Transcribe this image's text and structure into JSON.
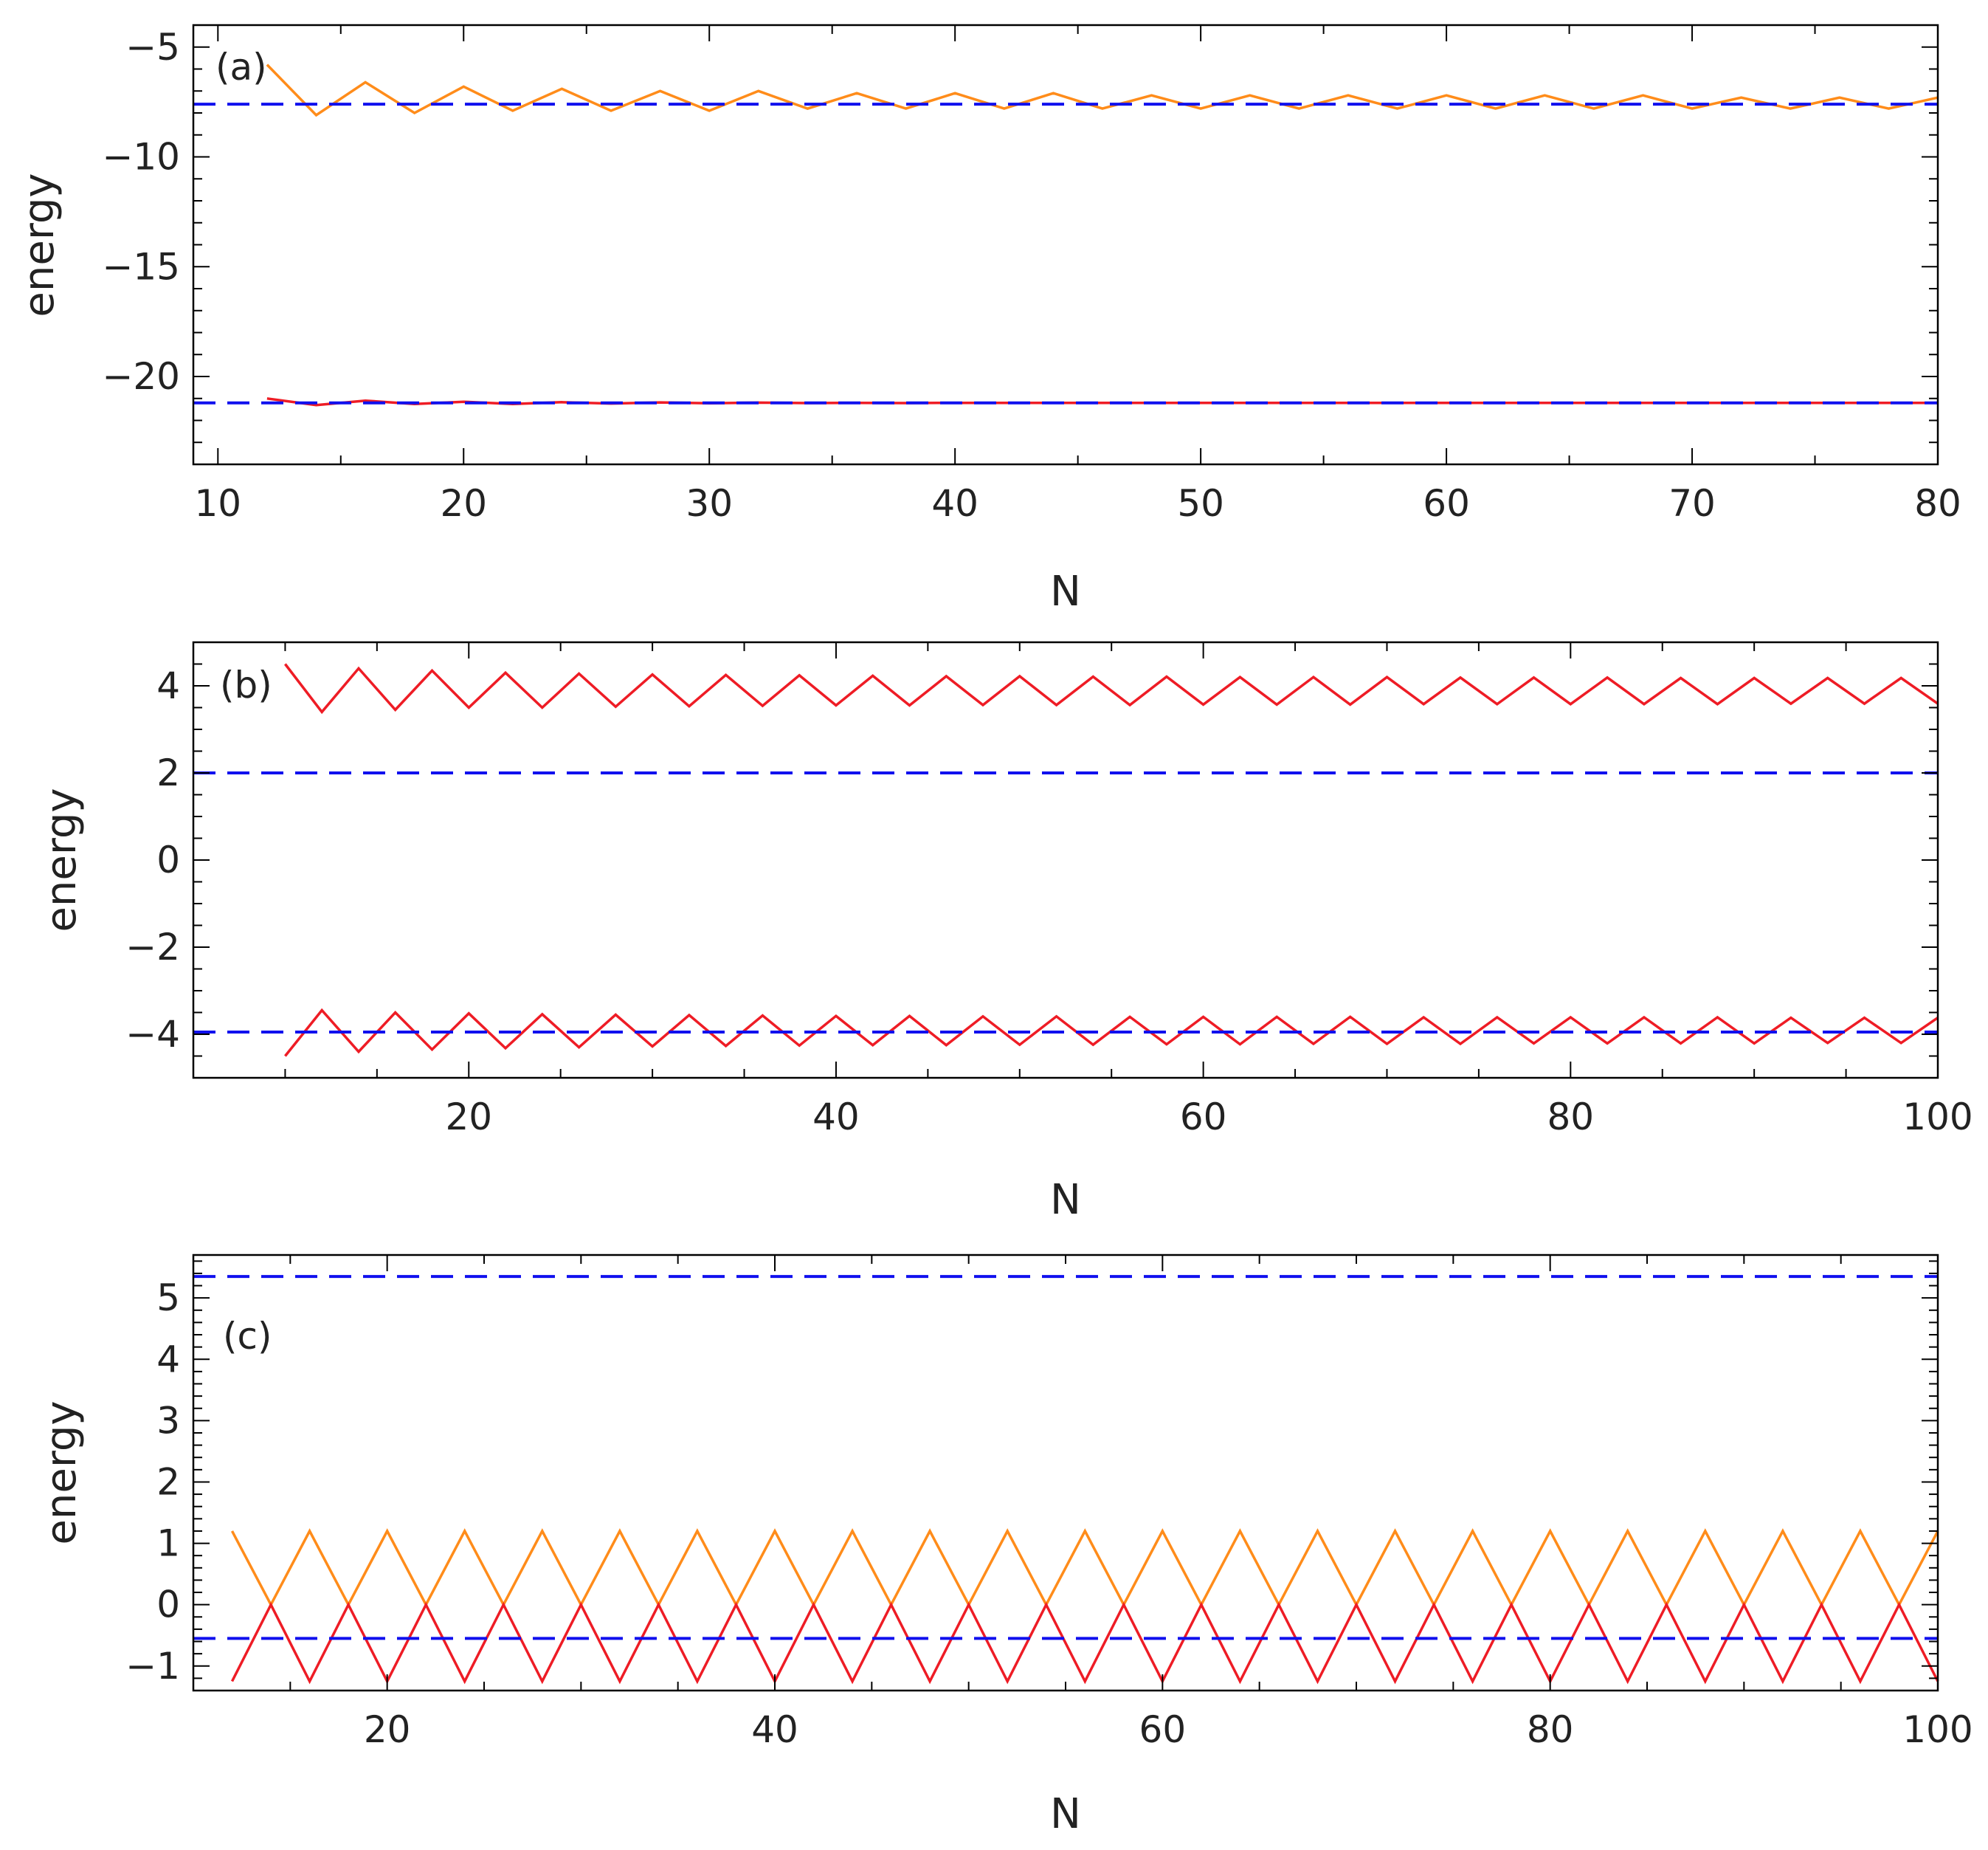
{
  "chart_data": [
    {
      "type": "line",
      "panel_label": "(a)",
      "xlabel": "N",
      "ylabel": "energy",
      "xlim": [
        9,
        80
      ],
      "ylim": [
        -24,
        -4
      ],
      "x_ticks": [
        10,
        20,
        30,
        40,
        50,
        60,
        70,
        80
      ],
      "y_ticks": [
        -20,
        -15,
        -10,
        -5
      ],
      "x_tick_labels": [
        "10",
        "20",
        "30",
        "40",
        "50",
        "60",
        "70",
        "80"
      ],
      "y_tick_labels": [
        "−20",
        "−15",
        "−10",
        "−5"
      ],
      "grid": false,
      "series": [
        {
          "color": "#ff8c1a",
          "style": "solid",
          "x": [
            12,
            14,
            16,
            18,
            20,
            22,
            24,
            26,
            28,
            30,
            32,
            34,
            36,
            38,
            40,
            42,
            44,
            46,
            48,
            50,
            52,
            54,
            56,
            58,
            60,
            62,
            64,
            66,
            68,
            70,
            72,
            74,
            76,
            78,
            80
          ],
          "y": [
            -5.8,
            -8.1,
            -6.6,
            -8.0,
            -6.8,
            -7.9,
            -6.9,
            -7.9,
            -7.0,
            -7.9,
            -7.0,
            -7.8,
            -7.1,
            -7.8,
            -7.1,
            -7.8,
            -7.1,
            -7.8,
            -7.2,
            -7.8,
            -7.2,
            -7.8,
            -7.2,
            -7.8,
            -7.2,
            -7.8,
            -7.2,
            -7.8,
            -7.2,
            -7.8,
            -7.3,
            -7.8,
            -7.3,
            -7.8,
            -7.3
          ]
        },
        {
          "color": "#ee1c25",
          "style": "solid",
          "x": [
            12,
            14,
            16,
            18,
            20,
            22,
            24,
            26,
            28,
            30,
            32,
            34,
            36,
            38,
            40,
            44,
            48,
            52,
            56,
            60,
            64,
            68,
            72,
            76,
            80
          ],
          "y": [
            -21.0,
            -21.3,
            -21.1,
            -21.25,
            -21.15,
            -21.25,
            -21.17,
            -21.23,
            -21.18,
            -21.22,
            -21.19,
            -21.21,
            -21.2,
            -21.21,
            -21.2,
            -21.2,
            -21.2,
            -21.2,
            -21.2,
            -21.2,
            -21.2,
            -21.2,
            -21.2,
            -21.2,
            -21.2
          ]
        },
        {
          "color": "#1010ee",
          "style": "dashed",
          "x": [
            9,
            80
          ],
          "y": [
            -7.6,
            -7.6
          ]
        },
        {
          "color": "#1010ee",
          "style": "dashed",
          "x": [
            9,
            80
          ],
          "y": [
            -21.2,
            -21.2
          ]
        }
      ]
    },
    {
      "type": "line",
      "panel_label": "(b)",
      "xlabel": "N",
      "ylabel": "energy",
      "xlim": [
        5,
        100
      ],
      "ylim": [
        -5,
        5
      ],
      "x_ticks": [
        20,
        40,
        60,
        80,
        100
      ],
      "y_ticks": [
        -4,
        -2,
        0,
        2,
        4
      ],
      "x_tick_labels": [
        "20",
        "40",
        "60",
        "80",
        "100"
      ],
      "y_tick_labels": [
        "−4",
        "−2",
        "0",
        "2",
        "4"
      ],
      "grid": false,
      "series": [
        {
          "color": "#ee1c25",
          "style": "solid",
          "x": [
            10,
            12,
            14,
            16,
            18,
            20,
            22,
            24,
            26,
            28,
            30,
            32,
            34,
            36,
            38,
            40,
            42,
            44,
            46,
            48,
            50,
            52,
            54,
            56,
            58,
            60,
            62,
            64,
            66,
            68,
            70,
            72,
            74,
            76,
            78,
            80,
            82,
            84,
            86,
            88,
            90,
            92,
            94,
            96,
            98,
            100
          ],
          "y": [
            4.5,
            3.4,
            4.4,
            3.45,
            4.35,
            3.5,
            4.3,
            3.5,
            4.28,
            3.52,
            4.26,
            3.53,
            4.25,
            3.54,
            4.24,
            3.55,
            4.23,
            3.55,
            4.22,
            3.56,
            4.22,
            3.56,
            4.21,
            3.56,
            4.21,
            3.57,
            4.2,
            3.57,
            4.2,
            3.57,
            4.2,
            3.58,
            4.19,
            3.58,
            4.19,
            3.58,
            4.19,
            3.58,
            4.18,
            3.58,
            4.18,
            3.59,
            4.18,
            3.59,
            4.18,
            3.59
          ]
        },
        {
          "color": "#ee1c25",
          "style": "solid",
          "x": [
            10,
            12,
            14,
            16,
            18,
            20,
            22,
            24,
            26,
            28,
            30,
            32,
            34,
            36,
            38,
            40,
            42,
            44,
            46,
            48,
            50,
            52,
            54,
            56,
            58,
            60,
            62,
            64,
            66,
            68,
            70,
            72,
            74,
            76,
            78,
            80,
            82,
            84,
            86,
            88,
            90,
            92,
            94,
            96,
            98,
            100
          ],
          "y": [
            -4.5,
            -3.45,
            -4.4,
            -3.5,
            -4.35,
            -3.52,
            -4.32,
            -3.54,
            -4.3,
            -3.55,
            -4.28,
            -3.56,
            -4.27,
            -3.57,
            -4.26,
            -3.58,
            -4.25,
            -3.58,
            -4.25,
            -3.59,
            -4.24,
            -3.59,
            -4.24,
            -3.6,
            -4.23,
            -3.6,
            -4.23,
            -3.6,
            -4.22,
            -3.6,
            -4.22,
            -3.61,
            -4.22,
            -3.61,
            -4.21,
            -3.61,
            -4.21,
            -3.61,
            -4.21,
            -3.61,
            -4.21,
            -3.62,
            -4.2,
            -3.62,
            -4.2,
            -3.62
          ]
        },
        {
          "color": "#1010ee",
          "style": "dashed",
          "x": [
            5,
            100
          ],
          "y": [
            2.0,
            2.0
          ]
        },
        {
          "color": "#1010ee",
          "style": "dashed",
          "x": [
            5,
            100
          ],
          "y": [
            -3.95,
            -3.95
          ]
        }
      ]
    },
    {
      "type": "line",
      "panel_label": "(c)",
      "xlabel": "N",
      "ylabel": "energy",
      "xlim": [
        10,
        100
      ],
      "ylim": [
        -1.4,
        5.7
      ],
      "x_ticks": [
        20,
        40,
        60,
        80,
        100
      ],
      "y_ticks": [
        -1,
        0,
        1,
        2,
        3,
        4,
        5
      ],
      "x_tick_labels": [
        "20",
        "40",
        "60",
        "80",
        "100"
      ],
      "y_tick_labels": [
        "−1",
        "0",
        "1",
        "2",
        "3",
        "4",
        "5"
      ],
      "grid": false,
      "series": [
        {
          "color": "#ff8c1a",
          "style": "solid",
          "x": [
            12,
            14,
            16,
            18,
            20,
            22,
            24,
            26,
            28,
            30,
            32,
            34,
            36,
            38,
            40,
            42,
            44,
            46,
            48,
            50,
            52,
            54,
            56,
            58,
            60,
            62,
            64,
            66,
            68,
            70,
            72,
            74,
            76,
            78,
            80,
            82,
            84,
            86,
            88,
            90,
            92,
            94,
            96,
            98,
            100
          ],
          "y": [
            1.2,
            0,
            1.2,
            0,
            1.2,
            0,
            1.2,
            0,
            1.2,
            0,
            1.2,
            0,
            1.2,
            0,
            1.2,
            0,
            1.2,
            0,
            1.2,
            0,
            1.2,
            0,
            1.2,
            0,
            1.2,
            0,
            1.2,
            0,
            1.2,
            0,
            1.2,
            0,
            1.2,
            0,
            1.2,
            0,
            1.2,
            0,
            1.2,
            0,
            1.2,
            0,
            1.2,
            0,
            1.2
          ]
        },
        {
          "color": "#ee1c25",
          "style": "solid",
          "x": [
            12,
            14,
            16,
            18,
            20,
            22,
            24,
            26,
            28,
            30,
            32,
            34,
            36,
            38,
            40,
            42,
            44,
            46,
            48,
            50,
            52,
            54,
            56,
            58,
            60,
            62,
            64,
            66,
            68,
            70,
            72,
            74,
            76,
            78,
            80,
            82,
            84,
            86,
            88,
            90,
            92,
            94,
            96,
            98,
            100
          ],
          "y": [
            -1.25,
            0,
            -1.25,
            0,
            -1.25,
            0,
            -1.25,
            0,
            -1.25,
            0,
            -1.25,
            0,
            -1.25,
            0,
            -1.25,
            0,
            -1.25,
            0,
            -1.25,
            0,
            -1.25,
            0,
            -1.25,
            0,
            -1.25,
            0,
            -1.25,
            0,
            -1.25,
            0,
            -1.25,
            0,
            -1.25,
            0,
            -1.25,
            0,
            -1.25,
            0,
            -1.25,
            0,
            -1.25,
            0,
            -1.25,
            0,
            -1.25
          ]
        },
        {
          "color": "#1010ee",
          "style": "dashed",
          "x": [
            10,
            100
          ],
          "y": [
            5.35,
            5.35
          ]
        },
        {
          "color": "#1010ee",
          "style": "dashed",
          "x": [
            10,
            100
          ],
          "y": [
            -0.55,
            -0.55
          ]
        }
      ]
    }
  ]
}
